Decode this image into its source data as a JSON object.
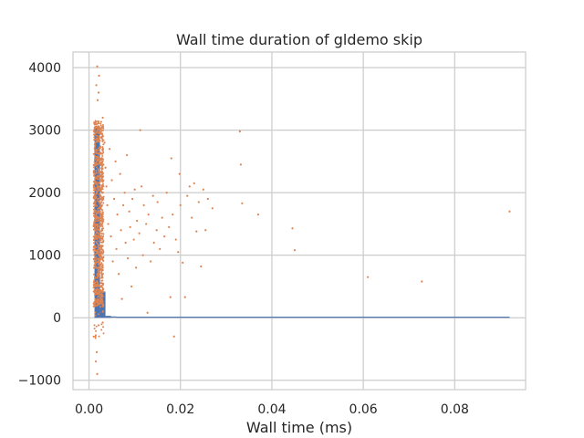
{
  "chart_data": {
    "type": "scatter",
    "title": "Wall time duration of gldemo skip",
    "xlabel": "Wall time (ms)",
    "ylabel": "",
    "xlim": [
      -0.0035,
      0.0955
    ],
    "ylim": [
      -1150,
      4250
    ],
    "x_ticks": [
      {
        "value": 0.0,
        "label": "0.00"
      },
      {
        "value": 0.02,
        "label": "0.02"
      },
      {
        "value": 0.04,
        "label": "0.04"
      },
      {
        "value": 0.06,
        "label": "0.06"
      },
      {
        "value": 0.08,
        "label": "0.08"
      }
    ],
    "y_ticks": [
      {
        "value": -1000,
        "label": "−1000"
      },
      {
        "value": 0,
        "label": "0"
      },
      {
        "value": 1000,
        "label": "1000"
      },
      {
        "value": 2000,
        "label": "2000"
      },
      {
        "value": 3000,
        "label": "3000"
      },
      {
        "value": 4000,
        "label": "4000"
      }
    ],
    "grid": true,
    "colors": {
      "histogram": "#4c72b0",
      "scatter": "#dd8452",
      "grid": "#cccccc",
      "spine": "#cccccc"
    },
    "histogram_bins": [
      {
        "x0": 0.0012,
        "x1": 0.0024,
        "count": 3060
      },
      {
        "x0": 0.0024,
        "x1": 0.0036,
        "count": 420
      },
      {
        "x0": 0.0036,
        "x1": 0.0048,
        "count": 30
      },
      {
        "x0": 0.0048,
        "x1": 0.006,
        "count": 6
      },
      {
        "x0": 0.006,
        "x1": 0.092,
        "count": 2
      }
    ],
    "scatter_dense": {
      "x_min": 0.001,
      "x_max": 0.0032,
      "y_min": -350,
      "y_max": 3150,
      "count": 900
    },
    "scatter_points": [
      [
        0.0018,
        4020
      ],
      [
        0.0022,
        3870
      ],
      [
        0.0016,
        3720
      ],
      [
        0.0021,
        3600
      ],
      [
        0.0019,
        3480
      ],
      [
        0.0014,
        -300
      ],
      [
        0.0017,
        -550
      ],
      [
        0.0015,
        -700
      ],
      [
        0.0018,
        -900
      ],
      [
        0.0021,
        -120
      ],
      [
        0.003,
        3200
      ],
      [
        0.0034,
        2800
      ],
      [
        0.0036,
        2400
      ],
      [
        0.0038,
        2100
      ],
      [
        0.004,
        1800
      ],
      [
        0.0042,
        1500
      ],
      [
        0.0045,
        2700
      ],
      [
        0.0048,
        1300
      ],
      [
        0.005,
        2200
      ],
      [
        0.0052,
        900
      ],
      [
        0.0055,
        1900
      ],
      [
        0.0058,
        2500
      ],
      [
        0.006,
        1100
      ],
      [
        0.0062,
        1650
      ],
      [
        0.0065,
        700
      ],
      [
        0.0068,
        2300
      ],
      [
        0.007,
        1400
      ],
      [
        0.0072,
        300
      ],
      [
        0.0075,
        1800
      ],
      [
        0.0078,
        2000
      ],
      [
        0.008,
        1200
      ],
      [
        0.0083,
        2600
      ],
      [
        0.0085,
        950
      ],
      [
        0.0088,
        1700
      ],
      [
        0.009,
        1450
      ],
      [
        0.0093,
        500
      ],
      [
        0.0095,
        1900
      ],
      [
        0.0098,
        1250
      ],
      [
        0.01,
        2050
      ],
      [
        0.0103,
        800
      ],
      [
        0.0105,
        1550
      ],
      [
        0.011,
        1350
      ],
      [
        0.0112,
        3000
      ],
      [
        0.0115,
        2100
      ],
      [
        0.0118,
        1000
      ],
      [
        0.012,
        1800
      ],
      [
        0.0125,
        1500
      ],
      [
        0.0128,
        80
      ],
      [
        0.013,
        1650
      ],
      [
        0.0135,
        900
      ],
      [
        0.014,
        1950
      ],
      [
        0.0142,
        1200
      ],
      [
        0.0148,
        1400
      ],
      [
        0.015,
        1850
      ],
      [
        0.0155,
        1100
      ],
      [
        0.016,
        1600
      ],
      [
        0.0165,
        1300
      ],
      [
        0.017,
        2000
      ],
      [
        0.0175,
        1450
      ],
      [
        0.0178,
        330
      ],
      [
        0.018,
        2550
      ],
      [
        0.0183,
        1650
      ],
      [
        0.0186,
        -300
      ],
      [
        0.019,
        1250
      ],
      [
        0.0195,
        1050
      ],
      [
        0.0198,
        2300
      ],
      [
        0.02,
        1800
      ],
      [
        0.0205,
        880
      ],
      [
        0.021,
        330
      ],
      [
        0.0215,
        1950
      ],
      [
        0.022,
        2100
      ],
      [
        0.0225,
        1600
      ],
      [
        0.023,
        2150
      ],
      [
        0.0235,
        1380
      ],
      [
        0.024,
        1850
      ],
      [
        0.0245,
        820
      ],
      [
        0.025,
        2050
      ],
      [
        0.0255,
        1400
      ],
      [
        0.026,
        1900
      ],
      [
        0.027,
        1750
      ],
      [
        0.033,
        2980
      ],
      [
        0.0332,
        2450
      ],
      [
        0.0335,
        1830
      ],
      [
        0.037,
        1650
      ],
      [
        0.0445,
        1430
      ],
      [
        0.045,
        1080
      ],
      [
        0.061,
        650
      ],
      [
        0.0728,
        580
      ],
      [
        0.092,
        1700
      ]
    ]
  }
}
